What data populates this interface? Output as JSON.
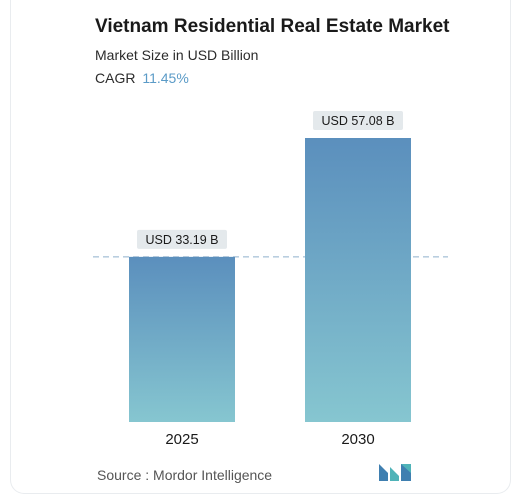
{
  "header": {
    "title": "Vietnam Residential Real Estate Market",
    "subtitle": "Market Size in USD Billion",
    "cagr_label": "CAGR",
    "cagr_value": "11.45%"
  },
  "footer": {
    "source": "Source :  Mordor Intelligence"
  },
  "colors": {
    "bar_top": "#5b8fbd",
    "bar_bottom": "#86c6d0",
    "label_bg": "#e4e9ec",
    "dashed_line": "#8fb0cc",
    "accent": "#5b9bc7",
    "logo_primary": "#3f7fb0",
    "logo_secondary": "#4fb3b8"
  },
  "logo_icon": "mordor-intelligence-logo-icon",
  "chart_data": {
    "type": "bar",
    "categories": [
      "2025",
      "2030"
    ],
    "values": [
      33.19,
      57.08
    ],
    "data_labels": [
      "USD 33.19 B",
      "USD 57.08 B"
    ],
    "title": "Vietnam Residential Real Estate Market",
    "subtitle": "Market Size in USD Billion",
    "xlabel": "",
    "ylabel": "",
    "ylim": [
      0,
      57.08
    ],
    "grid": false,
    "legend": "none",
    "reference_line": 33.19
  }
}
